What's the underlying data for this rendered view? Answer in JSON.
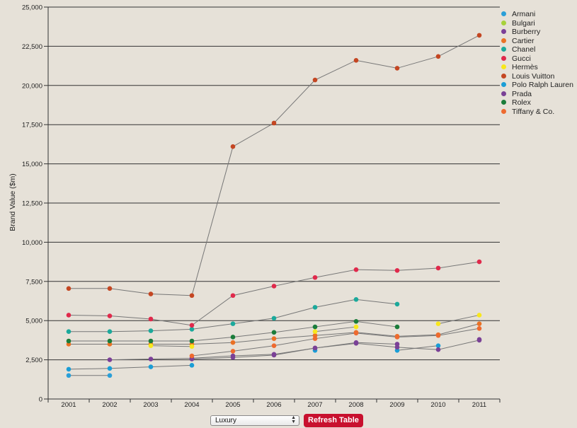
{
  "chart_data": {
    "type": "line",
    "title": "",
    "xlabel": "",
    "ylabel": "Brand Value ($m)",
    "ylim": [
      0,
      25000
    ],
    "yticks": [
      0,
      2500,
      5000,
      7500,
      10000,
      12500,
      15000,
      17500,
      20000,
      22500,
      25000
    ],
    "ytick_labels": [
      "0",
      "2,500",
      "5,000",
      "7,500",
      "10,000",
      "12,500",
      "15,000",
      "17,500",
      "20,000",
      "22,500",
      "25,000"
    ],
    "categories": [
      "2001",
      "2002",
      "2003",
      "2004",
      "2005",
      "2006",
      "2007",
      "2008",
      "2009",
      "2010",
      "2011"
    ],
    "grid": "horizontal",
    "legend_position": "top-right",
    "series": [
      {
        "name": "Armani",
        "color": "#2a9fd8",
        "values": [
          1500,
          1500,
          null,
          null,
          null,
          null,
          null,
          null,
          null,
          null,
          null
        ]
      },
      {
        "name": "Bulgari",
        "color": "#a7d13b",
        "values": [
          null,
          null,
          null,
          null,
          null,
          null,
          null,
          null,
          null,
          null,
          null
        ]
      },
      {
        "name": "Burberry",
        "color": "#7b3f98",
        "values": [
          null,
          2500,
          2550,
          2600,
          2750,
          2850,
          3250,
          3600,
          3500,
          null,
          3800
        ]
      },
      {
        "name": "Cartier",
        "color": "#ea7125",
        "values": [
          3500,
          3500,
          3500,
          3500,
          3600,
          3850,
          4050,
          4250,
          4000,
          4100,
          4800
        ]
      },
      {
        "name": "Chanel",
        "color": "#1ba99b",
        "values": [
          4300,
          4300,
          4350,
          4450,
          4800,
          5150,
          5850,
          6350,
          6050,
          null,
          null
        ]
      },
      {
        "name": "Gucci",
        "color": "#e0294b",
        "values": [
          5350,
          5300,
          5100,
          4700,
          6600,
          7200,
          7750,
          8250,
          8200,
          8350,
          8750
        ]
      },
      {
        "name": "Hermès",
        "color": "#f8e71c",
        "values": [
          null,
          null,
          3400,
          3350,
          null,
          null,
          4300,
          4600,
          null,
          4800,
          5350
        ]
      },
      {
        "name": "Louis Vuitton",
        "color": "#c44622",
        "values": [
          7050,
          7050,
          6700,
          6600,
          16100,
          17600,
          20350,
          21600,
          21100,
          21850,
          23200
        ]
      },
      {
        "name": "Polo Ralph Lauren",
        "color": "#1a9dd6",
        "values": [
          1900,
          1950,
          2050,
          2150,
          null,
          null,
          3100,
          null,
          3100,
          3400,
          null
        ]
      },
      {
        "name": "Prada",
        "color": "#7a4196",
        "values": [
          null,
          null,
          null,
          2550,
          2650,
          2800,
          3250,
          3550,
          3300,
          3150,
          3750
        ]
      },
      {
        "name": "Rolex",
        "color": "#1a7c3a",
        "values": [
          3700,
          3700,
          3700,
          3700,
          3950,
          4250,
          4600,
          4950,
          4600,
          null,
          null
        ]
      },
      {
        "name": "Tiffany & Co.",
        "color": "#ee6a2f",
        "values": [
          null,
          null,
          null,
          2750,
          3050,
          3400,
          3850,
          4200,
          3950,
          4050,
          4500
        ]
      }
    ]
  },
  "controls": {
    "select_value": "Luxury",
    "refresh_label": "Refresh Table"
  }
}
